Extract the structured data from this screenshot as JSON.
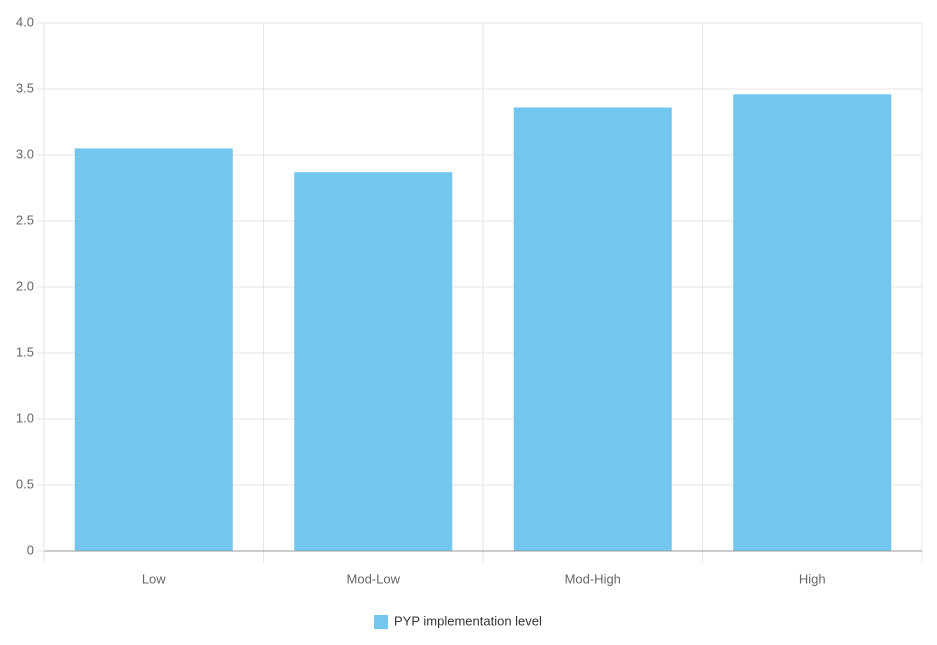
{
  "chart_data": {
    "type": "bar",
    "categories": [
      "Low",
      "Mod-Low",
      "Mod-High",
      "High"
    ],
    "series": [
      {
        "name": "PYP implementation level",
        "color": "#73c7ef",
        "values": [
          3.05,
          2.87,
          3.36,
          3.46
        ]
      }
    ],
    "ylim": [
      0,
      4
    ],
    "yticks": [
      0,
      0.5,
      {
        "value": 1,
        "label": "1.0"
      },
      1.5,
      {
        "value": 2,
        "label": "2.0"
      },
      2.5,
      {
        "value": 3,
        "label": "3.0"
      },
      3.5,
      {
        "value": 4,
        "label": "4.0"
      }
    ],
    "grid": true,
    "legend": "bottom"
  }
}
